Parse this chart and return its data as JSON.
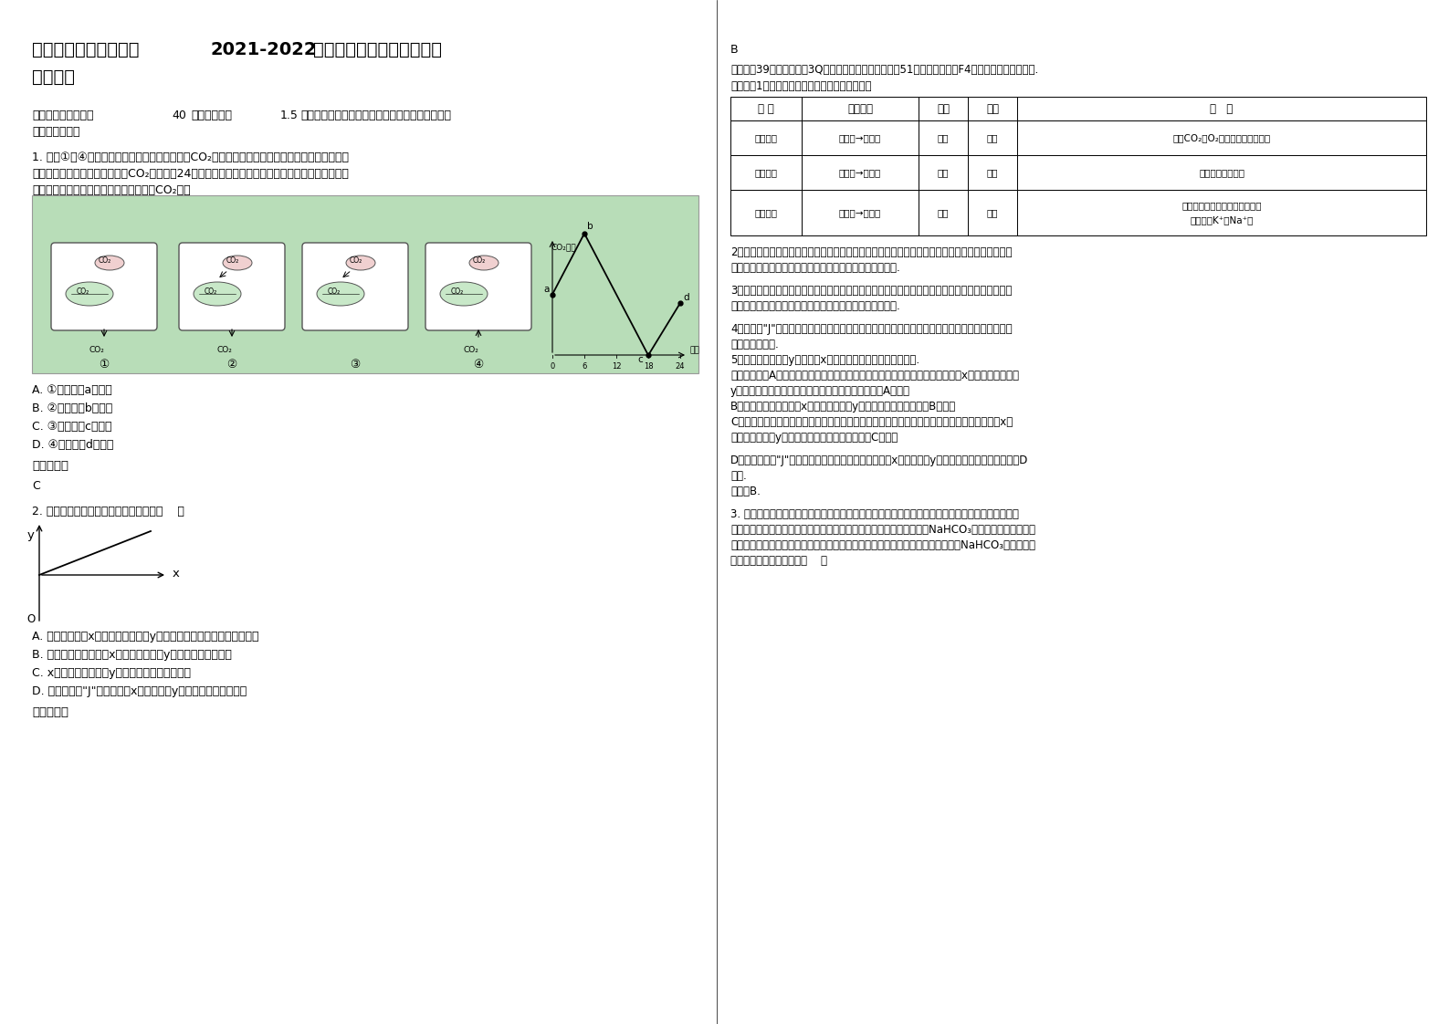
{
  "title": "福建省宁德市东源中学2021-2022学年高三生物上学期期末试题含解析",
  "bg_color": "#ffffff",
  "left_col": {
    "section1_header": "一、选择题（本题共40小题，每小题1.5分。在每小题给出的四个选项中，只有一项是符合题目要求的。）",
    "q1_line1": "1. 下图①～④表示不同条件下，植物叶肉细胞的CO₂转移途径。某小组在密闭玻璃温室中进行植物",
    "q1_line2": "栽培实验，他们对室内空气中的CO₂含量进行24小时监测，并根据数据绘制了如下图所示的曲线。下",
    "q1_line3": "列分析正确的是（忽略土壤微生物产生的CO₂量）",
    "q1_options": [
      "A. ①与曲线中a点相符",
      "B. ②与曲线中b点相符",
      "C. ③与曲线中c点相符",
      "D. ④与曲线中d点相符"
    ],
    "q1_answer_label": "参考答案：",
    "q1_answer": "C",
    "q2_text": "2. 下列各项描述符合图中变化规律的是（    ）",
    "q2_options": [
      "A. 适宜条件下，x－－氧气的浓度与y－－葡萄糖进入细胞的速率的关系",
      "B. 底物浓度足够大时，x－－酶的浓度与y－－反应速率的关系",
      "C. x细胞分化的过程与y细胞内染色体种类的关系",
      "D. 种群数量呈\"J\"型增长时，x－－时间与y－－种群增长率的关系"
    ],
    "q2_answer_label": "参考答案："
  },
  "right_col": {
    "answer_b": "B",
    "kaodian": "【考点】39：酶的特性；3Q：有氧呼吸的过程和意义；51：细胞的分化；F4：种群数量的变化曲线.",
    "fenxi": "【分析】1、小分子物质跨膜运输的方式和特点：",
    "table_headers": [
      "名 称",
      "运输方向",
      "载体",
      "能量",
      "实   例"
    ],
    "table_rows": [
      [
        "自由扩散",
        "高浓度→低浓度",
        "不需",
        "不需",
        "水、CO₂、O₂、甘油、苯、酒精等"
      ],
      [
        "协助扩散",
        "高浓度→低浓度",
        "需要",
        "不需",
        "红细胞吸收葡萄糖"
      ],
      [
        "主动运输",
        "低浓度→高浓度",
        "需要",
        "需要",
        "小肠绒毛上皮细胞吸收氨基酸、葡萄糖、K⁺、Na⁺等"
      ]
    ],
    "analysis2_line1": "2、酶能降低化学反应的活化能，提高化学反应速率，在底物充足，其它条件不变的情况下，酶浓度",
    "analysis2_line2": "越高，化学反应速率越快，但酶不能改变化学反应的平衡点.",
    "analysis3_line1": "3、细胞分化是指在个体发育中，由一个或一种细胞增殖产生的后代，在形态、结构和生理功能上发",
    "analysis3_line2": "生稳定性差异的过程，细胞分化的实质是基因的选择性表达.",
    "analysis4_line1": "4、种群的\"J\"型增长曲线：指数增长函数，描述在食物充足，无限空间，无天敌的理想条件下生物",
    "analysis4_line2": "无限增长的情况.",
    "analysis5": "5、题图表示因变量y随自变量x的增加而增加（二者成呈相关）.",
    "jieda_intro": "【解答】答：A、葡萄糖进入红细胞的方式是协助扩散，该过程不消耗能量，所以x－－氧气的浓度与",
    "jieda_a2": "y－－葡萄糖进入红细胞的速率无关（不呈正相关），A错误；",
    "jieda_b": "B、底物浓度足够大时，x－－酶的浓度与y－－反应速率呈正相关，B正确；",
    "jieda_c1": "C、细胞分化的实质是基因的选择性表达，因此细胞分化过程中，染色体种类不发生改变，所以x细",
    "jieda_c2": "胞分化的过程与y细胞内染色体种类不呈正相关，C错误；",
    "jieda_d1": "D、种群数量呈\"J\"型增长时，种群增长率不变，这过程x－－时间与y－－种群增长率不呈正相关，D",
    "jieda_d2": "错误.",
    "guse": "故选：B.",
    "q3_line1": "3. 如图为研究光合作用的实验装置，用打孔器在某植物的叶片上打出多个叶圆片，再用气泵抽出叶片",
    "q3_line2": "内的气体直至叶片沉入水底，然后将等量的叶圆片转至含有不同浓度的NaHCO₃溶液中，给予一定的光",
    "q3_line3": "照，测量每个培养皿中叶圆片上浮至液面所用的平均时间，以研究光合作用速率与NaHCO₃溶液浓度的",
    "q3_line4": "关系。有关分析正确的是（    ）"
  }
}
